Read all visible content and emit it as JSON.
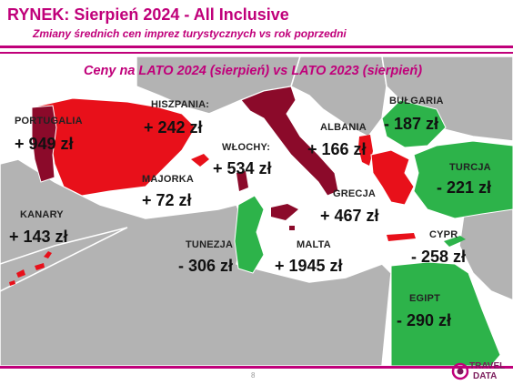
{
  "header": {
    "title": "RYNEK: Sierpień 2024 - All Inclusive",
    "subtitle": "Zmiany średnich cen imprez turystycznych vs rok poprzedni"
  },
  "map_title": "Ceny na LATO 2024 (sierpień) vs LATO 2023 (sierpień)",
  "colors": {
    "accent": "#c0007a",
    "increase_large": "#8b0a2a",
    "increase": "#e8101a",
    "decrease": "#2db34a",
    "land": "#b3b3b3",
    "sea": "#ffffff"
  },
  "countries": [
    {
      "id": "portugalia",
      "name": "PORTUGALIA",
      "change": "+ 949 zł"
    },
    {
      "id": "hiszpania",
      "name": "HISZPANIA:",
      "change": "+ 242 zł"
    },
    {
      "id": "majorka",
      "name": "MAJORKA",
      "change": "+ 72 zł"
    },
    {
      "id": "kanary",
      "name": "KANARY",
      "change": "+ 143 zł"
    },
    {
      "id": "wlochy",
      "name": "WŁOCHY:",
      "change": "+ 534 zł"
    },
    {
      "id": "albania",
      "name": "ALBANIA",
      "change": "+ 166 zł"
    },
    {
      "id": "bulgaria",
      "name": "BUŁGARIA",
      "change": "- 187 zł"
    },
    {
      "id": "turcja",
      "name": "TURCJA",
      "change": "- 221 zł"
    },
    {
      "id": "grecja",
      "name": "GRECJA",
      "change": "+ 467 zł"
    },
    {
      "id": "tunezja",
      "name": "TUNEZJA",
      "change": "- 306 zł"
    },
    {
      "id": "malta",
      "name": "MALTA",
      "change": "+ 1945 zł"
    },
    {
      "id": "cypr",
      "name": "CYPR",
      "change": "- 258 zł"
    },
    {
      "id": "egipt",
      "name": "EGIPT",
      "change": "- 290 zł"
    }
  ],
  "footer": {
    "page_number": "8",
    "logo_line1": "TRAVEL",
    "logo_line2": "DATA"
  }
}
